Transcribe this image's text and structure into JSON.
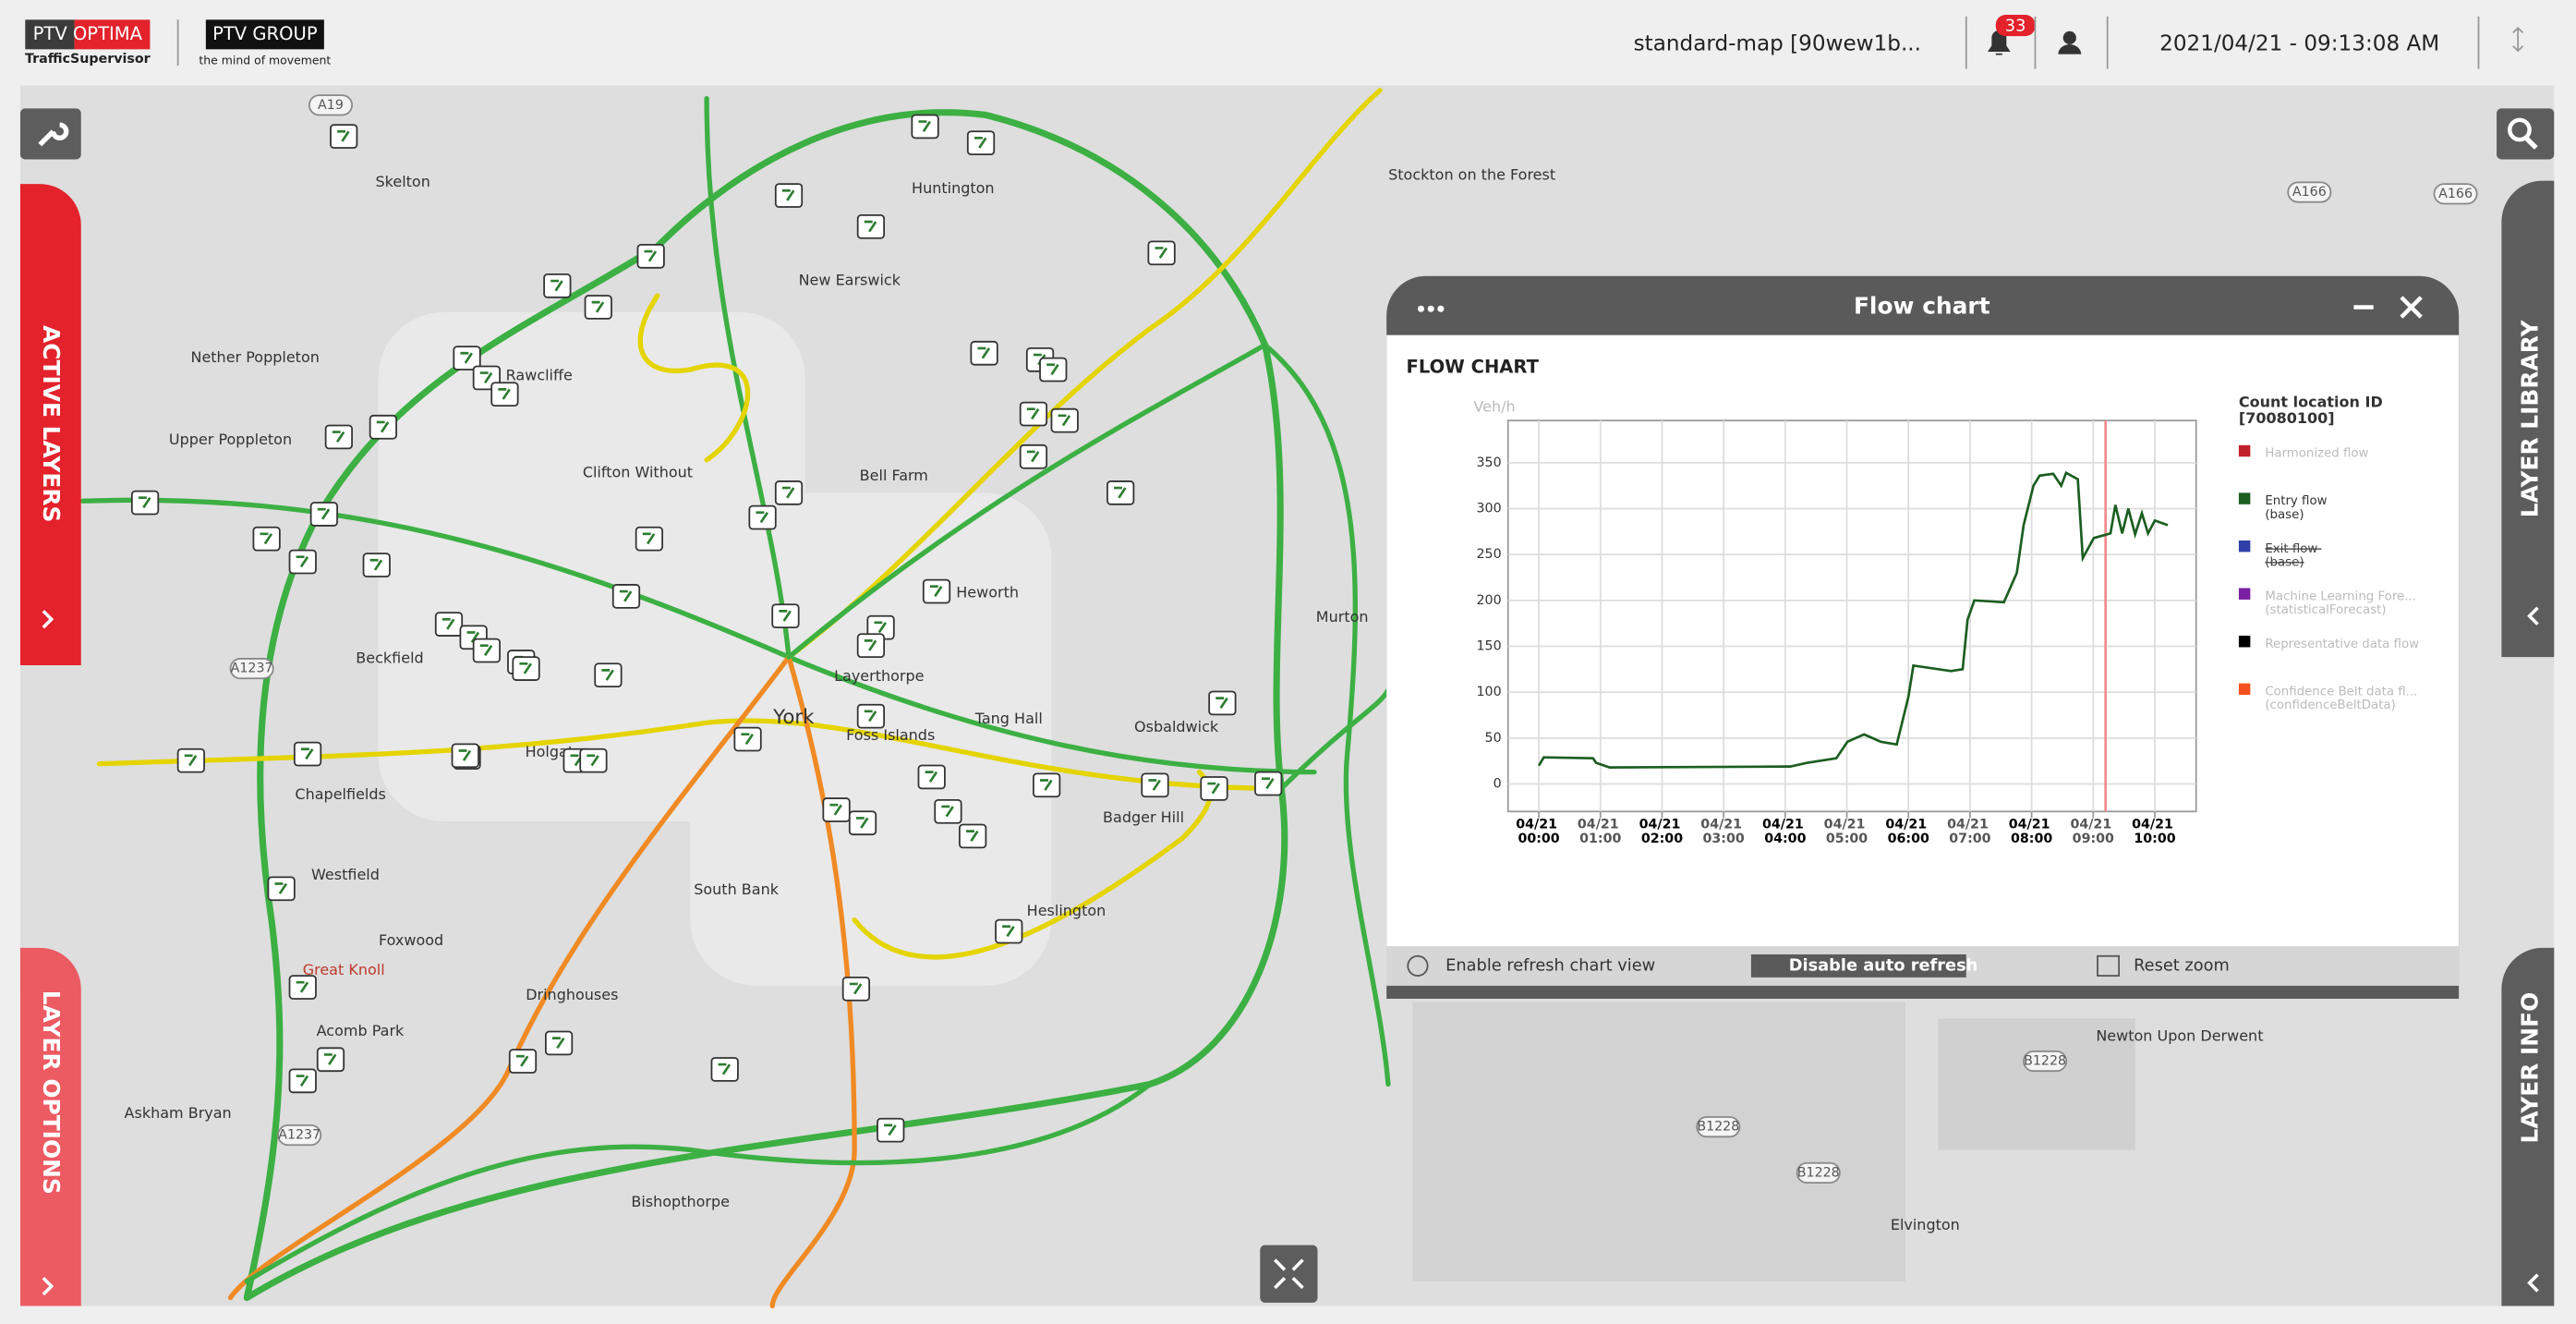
{
  "header": {
    "product": "PTV OPTIMA",
    "product_sub": "TrafficSupervisor",
    "company": "PTV GROUP",
    "slogan": "the mind of movement",
    "map_name": "standard-map [90wew1b...",
    "notifications": 33,
    "datetime": "2021/04/21 - 09:13:08  AM"
  },
  "side_tabs": {
    "active_layers": "ACTIVE LAYERS",
    "layer_options": "LAYER OPTIONS",
    "layer_library": "LAYER LIBRARY",
    "layer_info": "LAYER INFO"
  },
  "map": {
    "places": [
      "Skelton",
      "Nether Poppleton",
      "Upper Poppleton",
      "Rawcliffe",
      "Clifton Without",
      "New Earswick",
      "Huntington",
      "Bell Farm",
      "Heworth",
      "Beckfield",
      "Chapelfields",
      "Westfield",
      "Foxwood",
      "Acomb Park",
      "Askham Bryan",
      "Dringhouses",
      "South Bank",
      "York",
      "Holgate",
      "Layerthorpe",
      "Foss Islands",
      "Tang Hall",
      "Osbaldwick",
      "Badger Hill",
      "Heslington",
      "Murton",
      "Stockton on the Forest",
      "Newton Upon Derwent",
      "Elvington",
      "Bishopthorpe",
      "Great Knoll"
    ],
    "roads": [
      "A19",
      "A166",
      "A166",
      "A1237",
      "B1228",
      "B1228",
      "B1228",
      "A1237"
    ]
  },
  "panel": {
    "title": "Flow chart",
    "heading": "FLOW CHART",
    "buttons": [
      "Enable refresh chart view",
      "Disable auto refresh",
      "Reset zoom"
    ]
  },
  "chart_data": {
    "type": "line",
    "y_label": "Veh/h",
    "x": [
      0.0,
      0.08,
      0.88,
      0.93,
      1.15,
      4.08,
      4.35,
      4.83,
      5.01,
      5.28,
      5.55,
      5.81,
      6.0,
      6.08,
      6.69,
      6.88,
      6.96,
      7.07,
      7.55,
      7.76,
      7.87,
      8.03,
      8.13,
      8.35,
      8.48,
      8.56,
      8.75,
      8.83,
      9.01,
      9.28,
      9.36,
      9.47,
      9.57,
      9.68,
      9.79,
      9.89,
      10.0,
      10.21
    ],
    "series": [
      {
        "name": "Harmonized flow",
        "color": "#c0202a",
        "state": "disabled"
      },
      {
        "name": "Entry flow (base)",
        "color": "#1b5e20",
        "state": "shown",
        "values": [
          20,
          29,
          28,
          23,
          18,
          19,
          23,
          28,
          46,
          54,
          46,
          43,
          95,
          129,
          123,
          125,
          179,
          200,
          198,
          230,
          282,
          325,
          336,
          338,
          325,
          339,
          332,
          246,
          268,
          273,
          304,
          273,
          300,
          272,
          295,
          273,
          287,
          282
        ]
      },
      {
        "name": "Exit flow (base)",
        "color": "#2e3fa8",
        "state": "struck"
      },
      {
        "name": "Machine Learning Fore... (statisticalForecast)",
        "color": "#7b1fa2",
        "state": "disabled"
      },
      {
        "name": "Representative data flow",
        "color": "#000000",
        "state": "disabled"
      },
      {
        "name": "Confidence Belt data fl... (confidenceBeltData)",
        "color": "#f4511e",
        "state": "disabled"
      }
    ],
    "legend_title": "Count location ID [70080100]",
    "marker_x": 9.2,
    "marker_color": "#f28b8b",
    "xlim": [
      -0.5,
      10.67
    ],
    "ylim": [
      -30,
      396
    ],
    "xticks": [
      {
        "value": 0,
        "label": "04/21 00:00"
      },
      {
        "value": 1,
        "label": "04/21 01:00"
      },
      {
        "value": 2,
        "label": "04/21 02:00"
      },
      {
        "value": 3,
        "label": "04/21 03:00"
      },
      {
        "value": 4,
        "label": "04/21 04:00"
      },
      {
        "value": 5,
        "label": "04/21 05:00"
      },
      {
        "value": 6,
        "label": "04/21 06:00"
      },
      {
        "value": 7,
        "label": "04/21 07:00"
      },
      {
        "value": 8,
        "label": "04/21 08:00"
      },
      {
        "value": 9,
        "label": "04/21 09:00"
      },
      {
        "value": 10,
        "label": "04/21 10:00"
      }
    ],
    "yticks": [
      0,
      50,
      100,
      150,
      200,
      250,
      300,
      350
    ],
    "grid": true
  }
}
